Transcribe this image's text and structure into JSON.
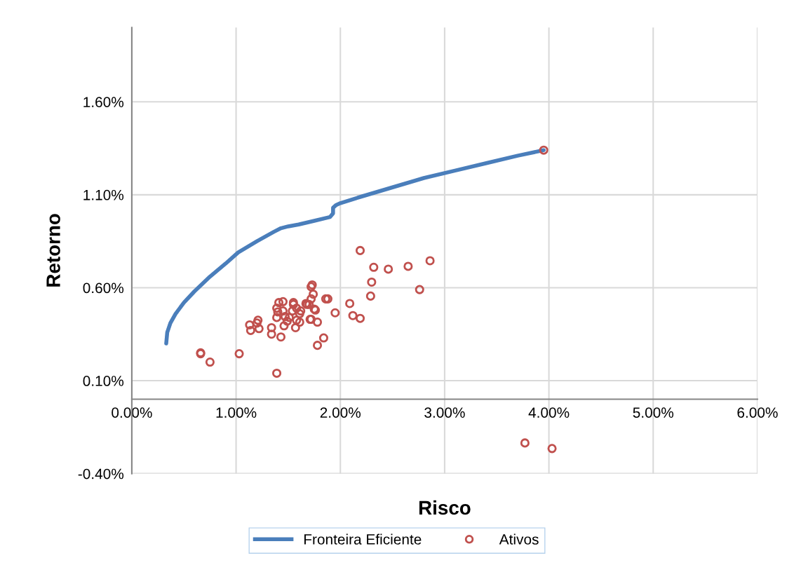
{
  "chart_data": {
    "type": "scatter",
    "xlabel": "Risco",
    "ylabel": "Retorno",
    "xlim": [
      0,
      6
    ],
    "ylim": [
      -0.4,
      2.0
    ],
    "xticks": [
      {
        "value": 0,
        "label": "0.00%"
      },
      {
        "value": 1,
        "label": "1.00%"
      },
      {
        "value": 2,
        "label": "2.00%"
      },
      {
        "value": 3,
        "label": "3.00%"
      },
      {
        "value": 4,
        "label": "4.00%"
      },
      {
        "value": 5,
        "label": "5.00%"
      },
      {
        "value": 6,
        "label": "6.00%"
      }
    ],
    "yticks": [
      {
        "value": -0.4,
        "label": "-0.40%"
      },
      {
        "value": 0.1,
        "label": "0.10%"
      },
      {
        "value": 0.6,
        "label": "0.60%"
      },
      {
        "value": 1.1,
        "label": "1.10%"
      },
      {
        "value": 1.6,
        "label": "1.60%"
      }
    ],
    "grid": true,
    "legend": "bottom",
    "series": [
      {
        "name": "Fronteira Eficiente",
        "type": "line",
        "color": "#4a7ebb",
        "marker": "none",
        "line_style": "solid",
        "x": [
          0.33,
          0.34,
          0.37,
          0.42,
          0.5,
          0.6,
          0.75,
          0.9,
          1.02,
          1.2,
          1.36,
          1.43,
          1.5,
          1.6,
          1.75,
          1.9,
          1.93,
          1.93,
          1.96,
          2.0,
          2.2,
          2.5,
          2.8,
          3.1,
          3.4,
          3.7,
          3.95
        ],
        "values": [
          0.3,
          0.36,
          0.41,
          0.46,
          0.52,
          0.58,
          0.66,
          0.73,
          0.79,
          0.85,
          0.9,
          0.92,
          0.93,
          0.94,
          0.96,
          0.98,
          1.0,
          1.03,
          1.045,
          1.055,
          1.09,
          1.14,
          1.19,
          1.23,
          1.27,
          1.31,
          1.34
        ]
      },
      {
        "name": "Ativos",
        "color": "#c0504d",
        "marker": "circle",
        "x": [
          3.95,
          0.66,
          0.66,
          0.75,
          1.03,
          1.39,
          3.77,
          4.03,
          2.19,
          2.32,
          2.46,
          2.65,
          2.86,
          2.3,
          2.76,
          2.29,
          2.09,
          2.12,
          2.19,
          1.95,
          1.86,
          1.88,
          1.73,
          1.72,
          1.74,
          1.72,
          1.75,
          1.68,
          1.72,
          1.78,
          1.78,
          1.84,
          1.43,
          1.13,
          1.14,
          1.21,
          1.2,
          1.22,
          1.34,
          1.34,
          1.39,
          1.39,
          1.41,
          1.45,
          1.4,
          1.45,
          1.47,
          1.46,
          1.49,
          1.51,
          1.55,
          1.55,
          1.54,
          1.58,
          1.61,
          1.58,
          1.61,
          1.57,
          1.62,
          1.67,
          1.7,
          1.76,
          1.71
        ],
        "values": [
          1.34,
          0.25,
          0.245,
          0.2,
          0.245,
          0.14,
          -0.235,
          -0.265,
          0.8,
          0.71,
          0.7,
          0.715,
          0.745,
          0.63,
          0.59,
          0.555,
          0.515,
          0.45,
          0.435,
          0.465,
          0.54,
          0.54,
          0.615,
          0.605,
          0.565,
          0.54,
          0.485,
          0.51,
          0.43,
          0.415,
          0.29,
          0.33,
          0.335,
          0.4,
          0.37,
          0.425,
          0.41,
          0.38,
          0.385,
          0.35,
          0.44,
          0.49,
          0.52,
          0.525,
          0.47,
          0.475,
          0.445,
          0.395,
          0.42,
          0.44,
          0.52,
          0.51,
          0.475,
          0.49,
          0.46,
          0.425,
          0.415,
          0.385,
          0.475,
          0.515,
          0.51,
          0.48,
          0.43
        ]
      }
    ]
  }
}
